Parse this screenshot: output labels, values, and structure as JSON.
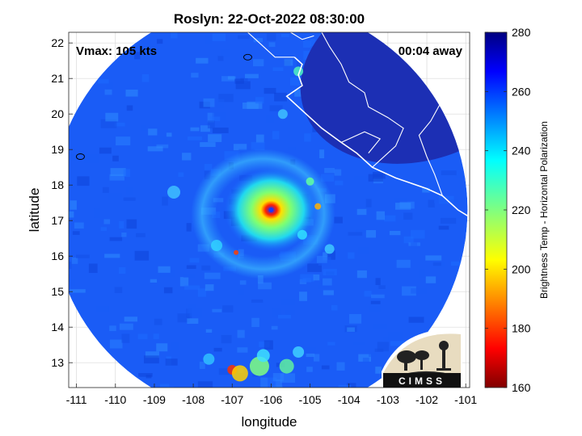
{
  "chart_data": {
    "type": "heatmap",
    "title": "Roslyn: 22-Oct-2022 08:30:00",
    "xlabel": "longitude",
    "ylabel": "latitude",
    "xlim": [
      -111.2,
      -100.9
    ],
    "ylim": [
      12.3,
      22.3
    ],
    "xticks": [
      -111,
      -110,
      -109,
      -108,
      -107,
      -106,
      -105,
      -104,
      -103,
      -102,
      -101
    ],
    "yticks": [
      13,
      14,
      15,
      16,
      17,
      18,
      19,
      20,
      21,
      22
    ],
    "grid": true,
    "annotations": {
      "vmax": "Vmax: 105 kts",
      "time_away": "00:04 away"
    },
    "center": {
      "lon": -106.0,
      "lat": 17.3
    },
    "colorbar": {
      "label": "Brightness Temp - Horizontal Polarization",
      "range": [
        160,
        280
      ],
      "ticks": [
        160,
        180,
        200,
        220,
        240,
        260,
        280
      ],
      "colormap": "jet"
    },
    "coastline": [
      [
        -105.4,
        21.6
      ],
      [
        -105.2,
        21.4
      ],
      [
        -105.3,
        21.1
      ],
      [
        -105.2,
        20.8
      ],
      [
        -105.6,
        20.5
      ],
      [
        -105.2,
        20.1
      ],
      [
        -104.7,
        19.6
      ],
      [
        -104.2,
        19.2
      ],
      [
        -103.8,
        18.9
      ],
      [
        -103.4,
        18.5
      ],
      [
        -102.8,
        18.2
      ],
      [
        -102.0,
        17.9
      ],
      [
        -101.6,
        17.7
      ],
      [
        -101.2,
        17.3
      ],
      [
        -100.9,
        17.1
      ]
    ],
    "borders": [
      [
        [
          -104.7,
          22.3
        ],
        [
          -104.5,
          21.9
        ],
        [
          -104.2,
          21.4
        ],
        [
          -104.0,
          20.9
        ],
        [
          -103.6,
          20.6
        ],
        [
          -103.5,
          20.2
        ],
        [
          -103.0,
          19.9
        ],
        [
          -102.6,
          19.6
        ],
        [
          -102.8,
          19.1
        ],
        [
          -103.4,
          18.5
        ]
      ],
      [
        [
          -104.2,
          19.2
        ],
        [
          -103.6,
          19.5
        ],
        [
          -103.2,
          19.3
        ],
        [
          -103.5,
          18.9
        ]
      ],
      [
        [
          -102.4,
          22.3
        ],
        [
          -102.2,
          21.7
        ],
        [
          -101.9,
          21.2
        ],
        [
          -101.5,
          21.0
        ],
        [
          -101.0,
          21.1
        ]
      ],
      [
        [
          -101.6,
          20.4
        ],
        [
          -101.9,
          19.8
        ],
        [
          -102.2,
          19.4
        ],
        [
          -102.0,
          18.8
        ],
        [
          -101.8,
          18.3
        ],
        [
          -101.6,
          17.7
        ]
      ],
      [
        [
          -106.6,
          22.3
        ],
        [
          -106.3,
          22.0
        ],
        [
          -105.9,
          21.6
        ],
        [
          -105.4,
          21.6
        ]
      ],
      [
        [
          -105.5,
          22.3
        ],
        [
          -105.2,
          22.1
        ],
        [
          -104.9,
          22.2
        ]
      ]
    ],
    "islands": [
      {
        "lon": -106.6,
        "lat": 21.6
      },
      {
        "lon": -110.9,
        "lat": 18.8
      }
    ]
  },
  "logo": {
    "text": "CIMSS"
  }
}
